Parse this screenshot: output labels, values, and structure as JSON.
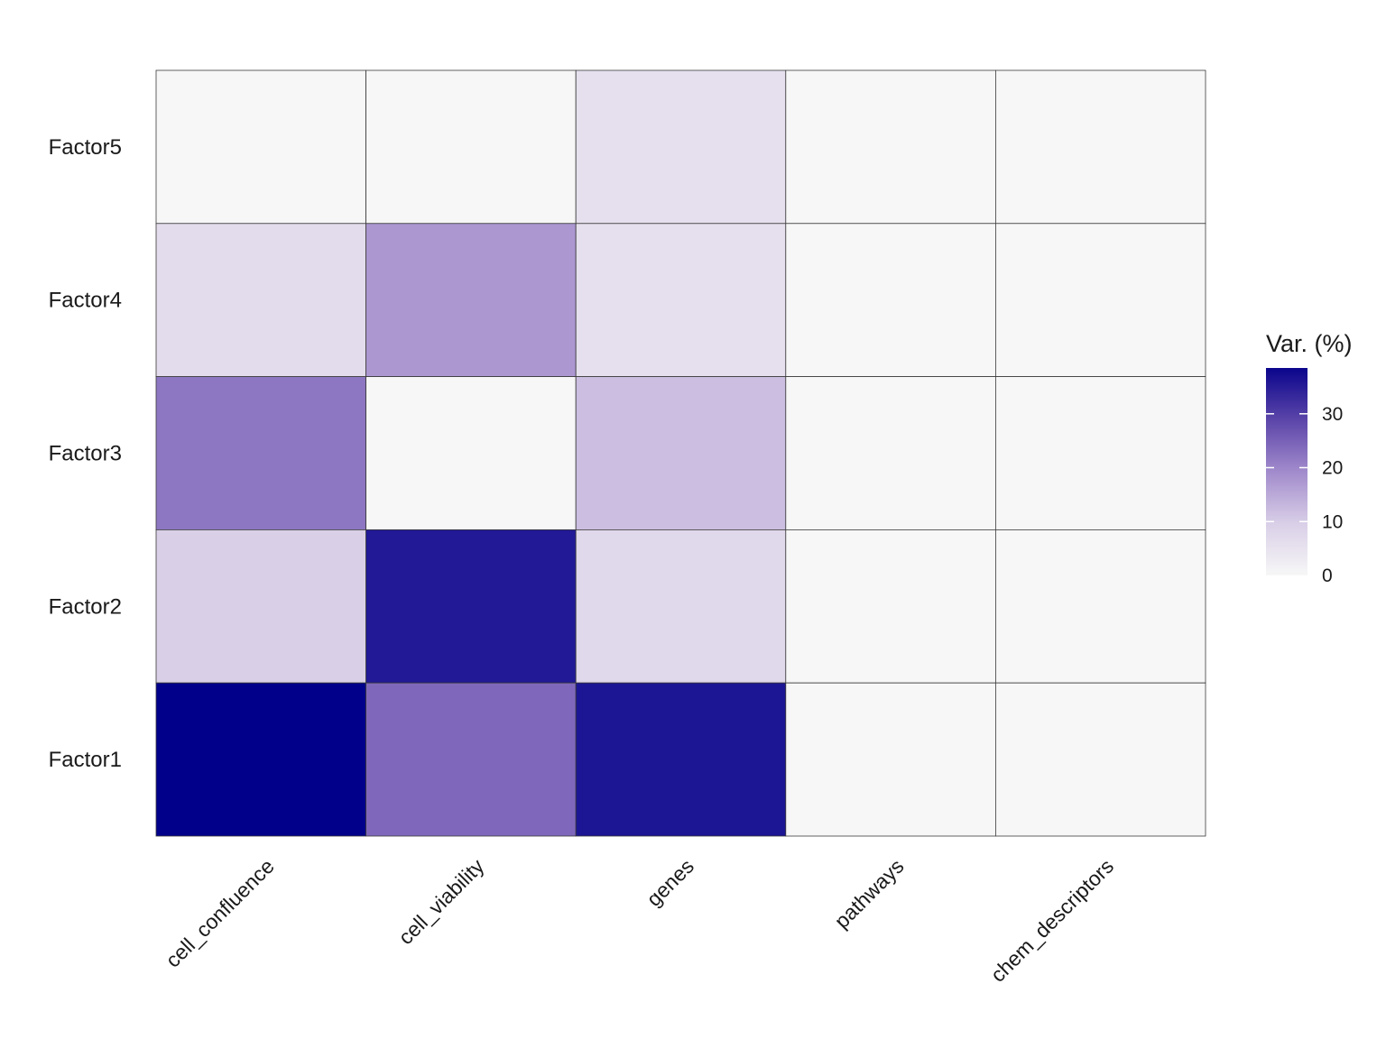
{
  "chart_data": {
    "type": "heatmap",
    "title": "",
    "xlabel": "",
    "ylabel": "",
    "x": [
      "cell_confluence",
      "cell_viability",
      "genes",
      "pathways",
      "chem_descriptors"
    ],
    "y": [
      "Factor5",
      "Factor4",
      "Factor3",
      "Factor2",
      "Factor1"
    ],
    "values": [
      [
        0,
        0,
        5.5,
        0,
        0
      ],
      [
        6.5,
        17.5,
        5.5,
        0,
        0
      ],
      [
        22,
        0,
        12,
        0,
        0
      ],
      [
        9.5,
        35,
        7.5,
        0,
        0
      ],
      [
        38.5,
        24,
        35.5,
        0,
        0
      ]
    ],
    "legend": {
      "title": "Var. (%)",
      "ticks": [
        0,
        10,
        20,
        30
      ],
      "range": [
        0,
        38.5
      ],
      "position": "right",
      "low_color": "#f7f7f7",
      "high_color": "#00008b"
    },
    "grid": false
  }
}
